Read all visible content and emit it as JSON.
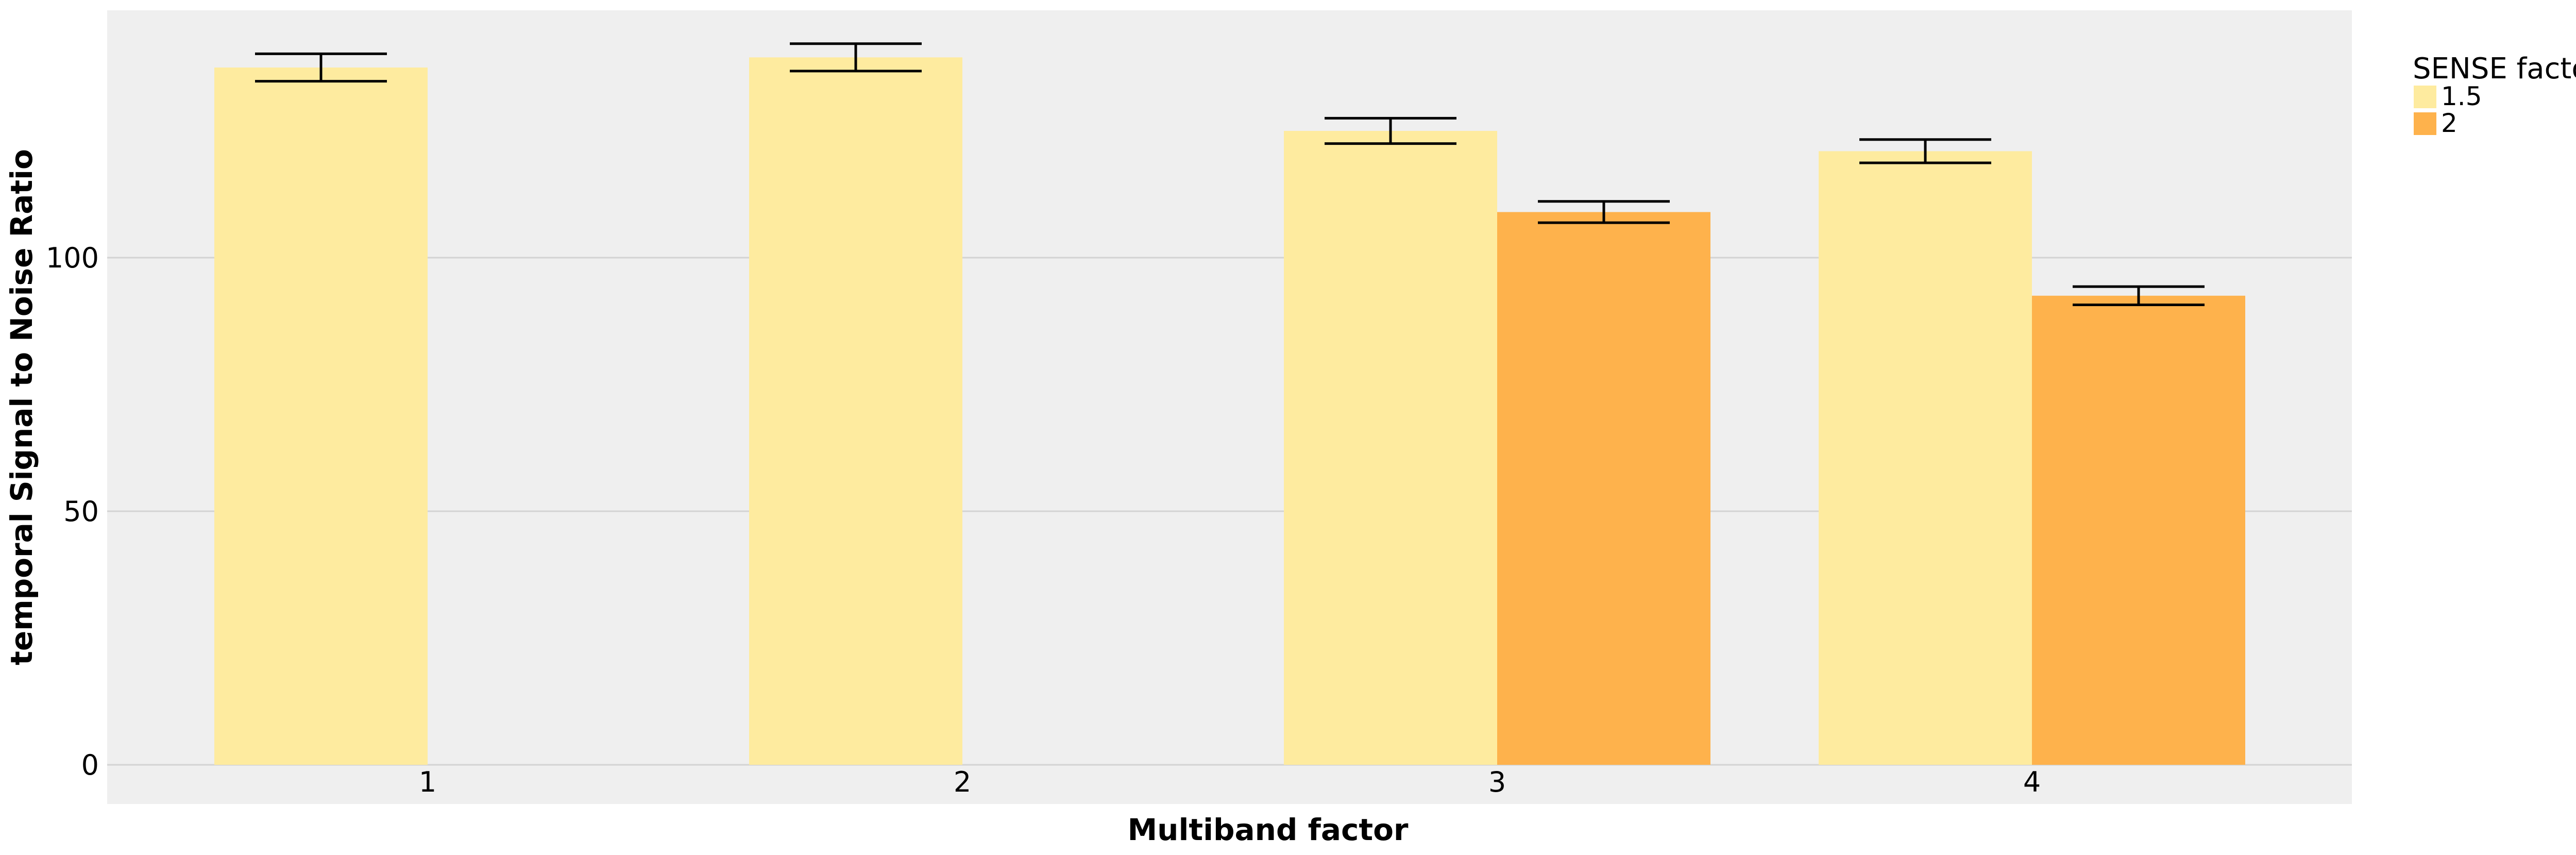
{
  "chart_data": {
    "type": "bar",
    "title": "",
    "xlabel": "Multiband factor",
    "ylabel": "temporal Signal to Noise Ratio",
    "categories": [
      "1",
      "2",
      "3",
      "4"
    ],
    "yticks": [
      0,
      50,
      100
    ],
    "ylim": [
      0,
      150
    ],
    "grid": true,
    "legend": {
      "title": "SENSE factor",
      "placement": "right"
    },
    "series": [
      {
        "name": "1.5",
        "color": "#FEEB9F",
        "values": [
          137.5,
          139.5,
          125,
          121
        ],
        "errors": [
          2.7,
          2.7,
          2.5,
          2.3
        ]
      },
      {
        "name": "2",
        "color": "#FEB24C",
        "values": [
          null,
          null,
          109,
          92.5
        ],
        "errors": [
          null,
          null,
          2.1,
          1.8
        ]
      }
    ]
  }
}
